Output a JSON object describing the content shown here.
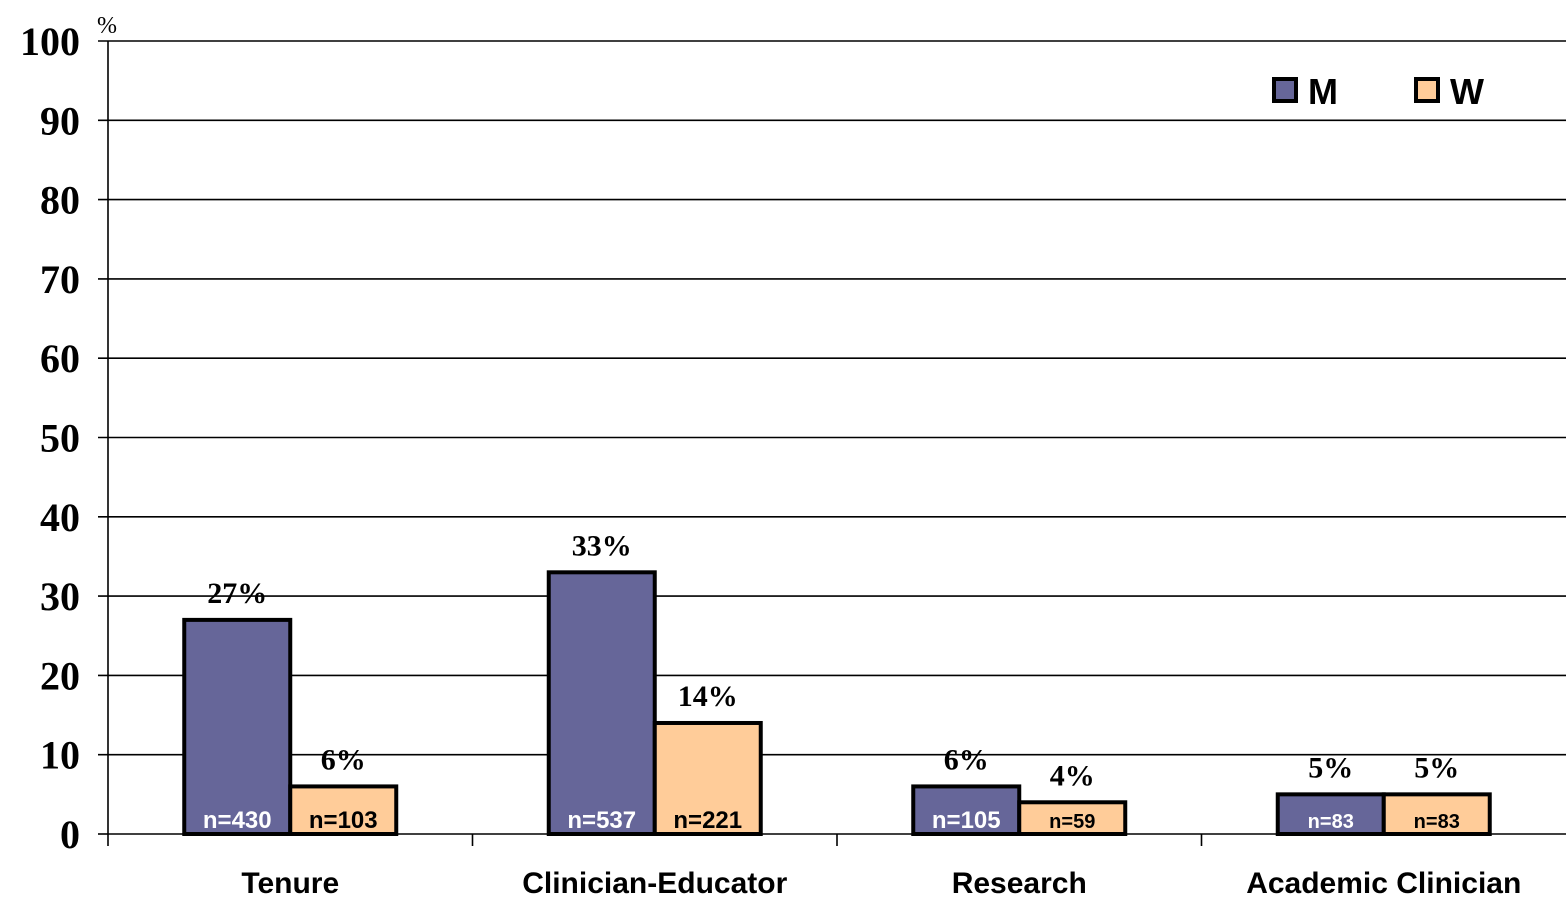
{
  "chart_data": {
    "type": "bar",
    "unit_label": "%",
    "categories": [
      "Tenure",
      "Clinician-Educator",
      "Research",
      "Academic Clinician"
    ],
    "series": [
      {
        "name": "M",
        "color": "#666699",
        "values": [
          27,
          33,
          6,
          5
        ],
        "value_labels": [
          "27%",
          "33%",
          "6%",
          "5%"
        ],
        "n_labels": [
          "n=430",
          "n=537",
          "n=105",
          "n=83"
        ]
      },
      {
        "name": "W",
        "color": "#ffcc99",
        "values": [
          6,
          14,
          4,
          5
        ],
        "value_labels": [
          "6%",
          "14%",
          "4%",
          "5%"
        ],
        "n_labels": [
          "n=103",
          "n=221",
          "n=59",
          "n=83"
        ]
      }
    ],
    "ylim": [
      0,
      100
    ],
    "yticks": [
      "0",
      "10",
      "20",
      "30",
      "40",
      "50",
      "60",
      "70",
      "80",
      "90",
      "100"
    ],
    "grid": true,
    "legend_position": "top-right"
  }
}
